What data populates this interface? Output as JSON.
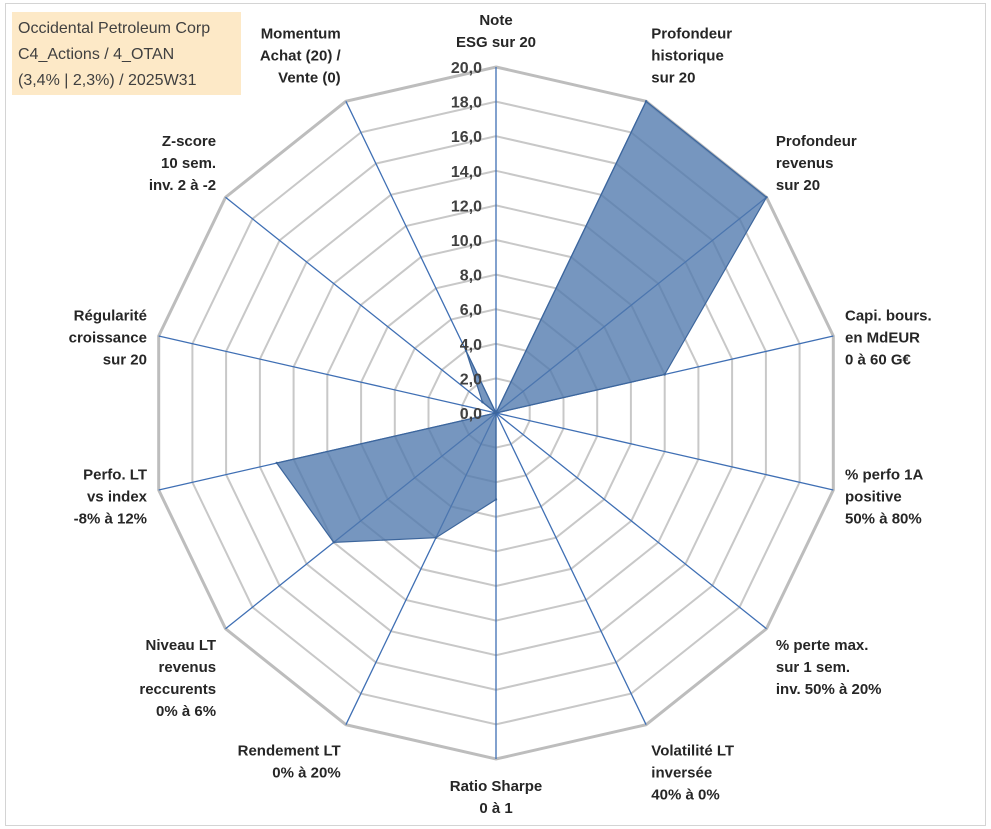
{
  "chart_data": {
    "type": "radar",
    "title_lines": [
      "Occidental Petroleum Corp",
      "C4_Actions / 4_OTAN",
      "(3,4% | 2,3%) / 2025W31"
    ],
    "rlim": [
      0,
      20
    ],
    "ticks": [
      "0,0",
      "2,0",
      "4,0",
      "6,0",
      "8,0",
      "10,0",
      "12,0",
      "14,0",
      "16,0",
      "18,0",
      "20,0"
    ],
    "categories": [
      [
        "Note",
        "ESG sur 20"
      ],
      [
        "Profondeur",
        "historique",
        "sur 20"
      ],
      [
        "Profondeur",
        "revenus",
        "sur 20"
      ],
      [
        "Capi. bours.",
        "en MdEUR",
        "0 à 60 G€"
      ],
      [
        "% perfo 1A",
        "positive",
        "50% à 80%"
      ],
      [
        "% perte max.",
        "sur 1 sem.",
        "inv. 50% à 20%"
      ],
      [
        "Volatilité LT",
        "inversée",
        "40% à 0%"
      ],
      [
        "Ratio Sharpe",
        "0 à 1"
      ],
      [
        "Rendement LT",
        "0% à 20%"
      ],
      [
        "Niveau LT",
        "revenus",
        "reccurents",
        "0% à 6%"
      ],
      [
        "Perfo. LT",
        "vs index",
        "-8% à 12%"
      ],
      [
        "Régularité",
        "croissance",
        "sur 20"
      ],
      [
        "Z-score",
        "10 sem.",
        "inv. 2 à -2"
      ],
      [
        "Momentum",
        "Achat (20) /",
        "Vente (0)"
      ]
    ],
    "values": [
      0.0,
      20.0,
      20.0,
      10.0,
      0.0,
      0.0,
      0.0,
      5.0,
      8.0,
      12.0,
      13.0,
      0.0,
      1.0,
      4.0
    ],
    "grid": true,
    "colors": {
      "fill": "#4f78ad",
      "fill_opacity": 0.78,
      "outline": "#3d669c",
      "spoke": "#3f6fb4",
      "grid": "#c8c8c8",
      "grid_outer": "#bdbdbd",
      "title_box_bg": "#fde9c7"
    }
  }
}
